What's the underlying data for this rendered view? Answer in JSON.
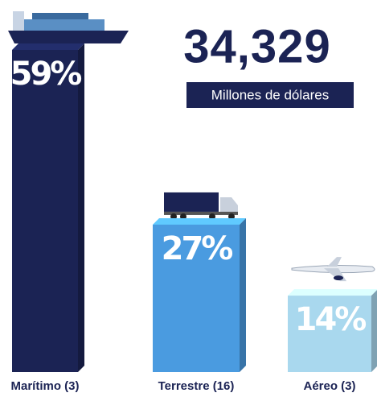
{
  "chart_data": {
    "type": "bar",
    "headline": "34,329",
    "subtitle": "Millones de dólares",
    "categories": [
      "Marítimo (3)",
      "Terrestre (16)",
      "Aéreo (3)"
    ],
    "values": [
      59,
      27,
      14
    ],
    "value_labels": [
      "59%",
      "27%",
      "14%"
    ],
    "colors": [
      "#1b2354",
      "#4a9be0",
      "#a9d8ee"
    ]
  }
}
